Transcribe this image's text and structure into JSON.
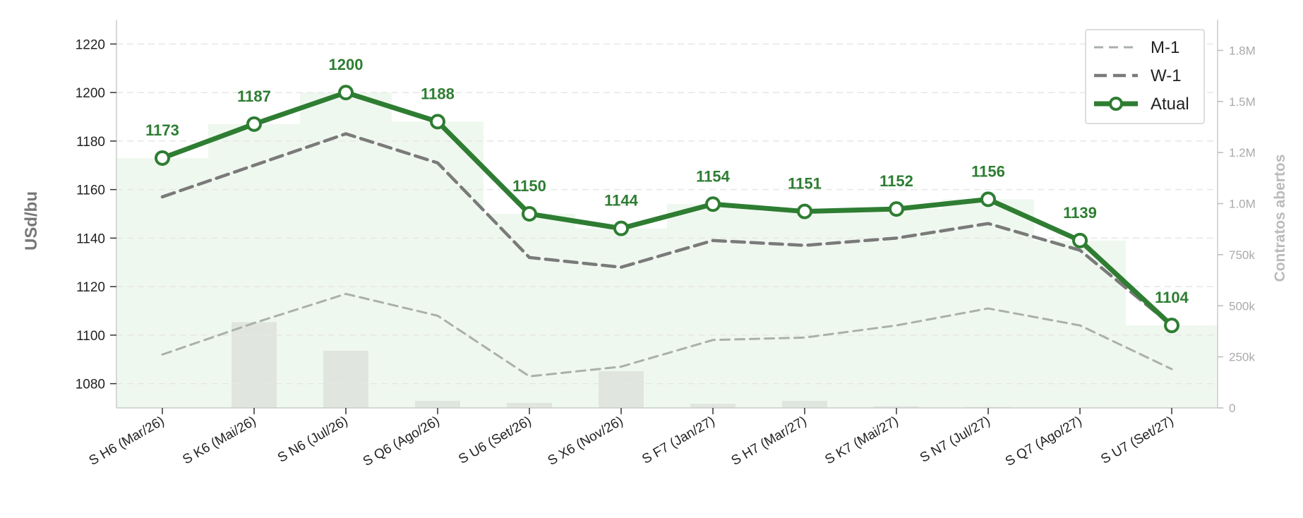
{
  "chart_data": {
    "type": "line",
    "categories": [
      "S H6 (Mar/26)",
      "S K6 (Mai/26)",
      "S N6 (Jul/26)",
      "S Q6 (Ago/26)",
      "S U6 (Set/26)",
      "S X6 (Nov/26)",
      "S F7 (Jan/27)",
      "S H7 (Mar/27)",
      "S K7 (Mai/27)",
      "S N7 (Jul/27)",
      "S Q7 (Ago/27)",
      "S U7 (Set/27)"
    ],
    "ylabel": "USd/bu",
    "ylabel_right": "Contratos abertos",
    "ylim": [
      1070,
      1230
    ],
    "yticks": [
      1080,
      1100,
      1120,
      1140,
      1160,
      1180,
      1200,
      1220
    ],
    "ylim_right": [
      0,
      1900000
    ],
    "yticks_right": [
      0,
      250000,
      500000,
      750000,
      1000000,
      1250000,
      1500000,
      1750000
    ],
    "yticks_right_labels": [
      "0",
      "250k",
      "500k",
      "750k",
      "1.0M",
      "1.2M",
      "1.5M",
      "1.8M"
    ],
    "grid": "horizontal dashed",
    "legend_position": "top-right",
    "series": [
      {
        "name": "M-1",
        "style": "dashed",
        "color": "#aab0aa",
        "values": [
          1092,
          1105,
          1117,
          1108,
          1083,
          1087,
          1098,
          1099,
          1104,
          1111,
          1104,
          1086
        ]
      },
      {
        "name": "W-1",
        "style": "dashed",
        "color": "#7a7a7a",
        "values": [
          1157,
          1170,
          1183,
          1171,
          1132,
          1128,
          1139,
          1137,
          1140,
          1146,
          1135,
          1104
        ]
      },
      {
        "name": "Atual",
        "style": "solid-marker",
        "color": "#2e7d32",
        "values": [
          1173,
          1187,
          1200,
          1188,
          1150,
          1144,
          1154,
          1151,
          1152,
          1156,
          1139,
          1104
        ],
        "labels": [
          "1173",
          "1187",
          "1200",
          "1188",
          "1150",
          "1144",
          "1154",
          "1151",
          "1152",
          "1156",
          "1139",
          "1104"
        ]
      }
    ],
    "open_interest": {
      "axis": "right",
      "color": "#e0e6df",
      "values": [
        0,
        420000,
        280000,
        35000,
        25000,
        180000,
        20000,
        35000,
        8000,
        5000,
        2000,
        0
      ]
    },
    "colors": {
      "area_fill": "#eaf5ea",
      "grid": "#e6e6e6",
      "axis": "#cccccc",
      "ylabel": "#777777",
      "ylabel_right": "#bbbbbb"
    }
  }
}
